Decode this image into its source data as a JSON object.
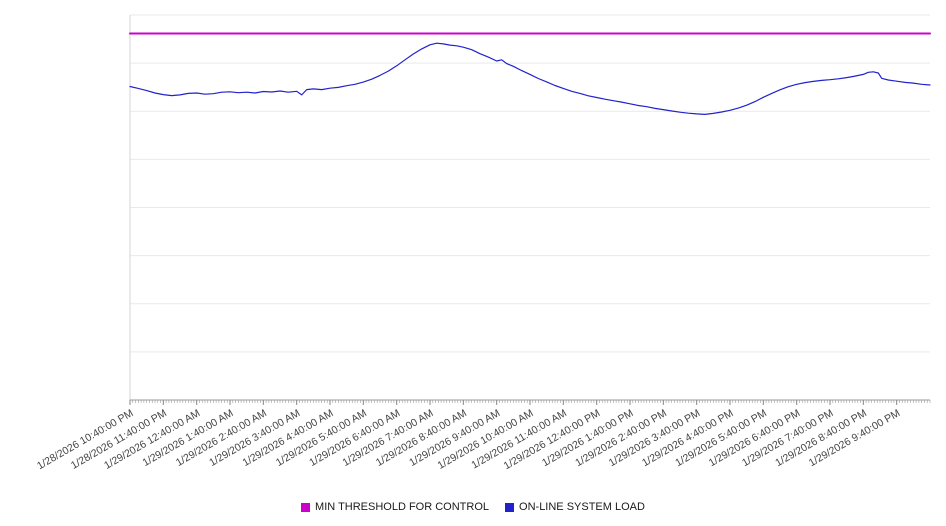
{
  "page": {
    "background": "#ffffff"
  },
  "chart_data": {
    "type": "line",
    "title": "",
    "xlabel": "",
    "ylabel": "",
    "grid": true,
    "legend_position": "bottom",
    "xlim": [
      0,
      24
    ],
    "ylim": [
      0,
      160
    ],
    "y_grid_step": 20,
    "x_tick_interval_hours": 1,
    "x_minor_tick_minutes": 5,
    "categories": [
      "1/28/2026 10:40:00 PM",
      "1/28/2026 11:40:00 PM",
      "1/29/2026 12:40:00 AM",
      "1/29/2026 1:40:00 AM",
      "1/29/2026 2:40:00 AM",
      "1/29/2026 3:40:00 AM",
      "1/29/2026 4:40:00 AM",
      "1/29/2026 5:40:00 AM",
      "1/29/2026 6:40:00 AM",
      "1/29/2026 7:40:00 AM",
      "1/29/2026 8:40:00 AM",
      "1/29/2026 9:40:00 AM",
      "1/29/2026 10:40:00 AM",
      "1/29/2026 11:40:00 AM",
      "1/29/2026 12:40:00 PM",
      "1/29/2026 1:40:00 PM",
      "1/29/2026 2:40:00 PM",
      "1/29/2026 3:40:00 PM",
      "1/29/2026 4:40:00 PM",
      "1/29/2026 5:40:00 PM",
      "1/29/2026 6:40:00 PM",
      "1/29/2026 7:40:00 PM",
      "1/29/2026 8:40:00 PM",
      "1/29/2026 9:40:00 PM"
    ],
    "series": [
      {
        "name": "MIN THRESHOLD FOR CONTROL",
        "color": "#cc00cc",
        "style": "constant",
        "value": 152.3
      },
      {
        "name": "ON-LINE SYSTEM LOAD",
        "color": "#2222cc",
        "style": "line",
        "points": [
          [
            0,
            130.3
          ],
          [
            0.25,
            129.5
          ],
          [
            0.5,
            128.6
          ],
          [
            0.75,
            127.6
          ],
          [
            1,
            126.9
          ],
          [
            1.25,
            126.5
          ],
          [
            1.5,
            126.8
          ],
          [
            1.75,
            127.4
          ],
          [
            2,
            127.6
          ],
          [
            2.25,
            127.1
          ],
          [
            2.5,
            127.3
          ],
          [
            2.75,
            127.9
          ],
          [
            3,
            128.1
          ],
          [
            3.25,
            127.7
          ],
          [
            3.5,
            127.9
          ],
          [
            3.75,
            127.6
          ],
          [
            4,
            128.2
          ],
          [
            4.25,
            128.0
          ],
          [
            4.5,
            128.4
          ],
          [
            4.75,
            127.9
          ],
          [
            5,
            128.3
          ],
          [
            5.15,
            126.8
          ],
          [
            5.3,
            129.0
          ],
          [
            5.5,
            129.3
          ],
          [
            5.75,
            129.0
          ],
          [
            6,
            129.6
          ],
          [
            6.25,
            129.9
          ],
          [
            6.5,
            130.6
          ],
          [
            6.75,
            131.2
          ],
          [
            7,
            132.1
          ],
          [
            7.25,
            133.3
          ],
          [
            7.5,
            134.9
          ],
          [
            7.75,
            136.7
          ],
          [
            8,
            138.9
          ],
          [
            8.25,
            141.4
          ],
          [
            8.5,
            143.8
          ],
          [
            8.75,
            145.9
          ],
          [
            9,
            147.6
          ],
          [
            9.2,
            148.3
          ],
          [
            9.4,
            148.0
          ],
          [
            9.6,
            147.5
          ],
          [
            9.8,
            147.2
          ],
          [
            10,
            146.6
          ],
          [
            10.25,
            145.6
          ],
          [
            10.5,
            143.9
          ],
          [
            10.75,
            142.5
          ],
          [
            11,
            140.9
          ],
          [
            11.15,
            141.4
          ],
          [
            11.3,
            139.8
          ],
          [
            11.5,
            138.7
          ],
          [
            11.75,
            136.9
          ],
          [
            12,
            135.3
          ],
          [
            12.25,
            133.6
          ],
          [
            12.5,
            132.2
          ],
          [
            12.75,
            130.7
          ],
          [
            13,
            129.5
          ],
          [
            13.25,
            128.3
          ],
          [
            13.5,
            127.4
          ],
          [
            13.75,
            126.4
          ],
          [
            14,
            125.7
          ],
          [
            14.25,
            125.0
          ],
          [
            14.5,
            124.4
          ],
          [
            14.75,
            123.8
          ],
          [
            15,
            123.1
          ],
          [
            15.25,
            122.4
          ],
          [
            15.5,
            121.9
          ],
          [
            15.75,
            121.2
          ],
          [
            16,
            120.7
          ],
          [
            16.25,
            120.1
          ],
          [
            16.5,
            119.6
          ],
          [
            16.75,
            119.2
          ],
          [
            17,
            118.9
          ],
          [
            17.25,
            118.7
          ],
          [
            17.5,
            119.1
          ],
          [
            17.75,
            119.7
          ],
          [
            18,
            120.4
          ],
          [
            18.25,
            121.3
          ],
          [
            18.5,
            122.5
          ],
          [
            18.75,
            124.0
          ],
          [
            19,
            125.8
          ],
          [
            19.25,
            127.4
          ],
          [
            19.5,
            128.9
          ],
          [
            19.75,
            130.2
          ],
          [
            20,
            131.2
          ],
          [
            20.25,
            131.9
          ],
          [
            20.5,
            132.4
          ],
          [
            20.75,
            132.8
          ],
          [
            21,
            133.1
          ],
          [
            21.25,
            133.5
          ],
          [
            21.5,
            134.0
          ],
          [
            21.75,
            134.6
          ],
          [
            22,
            135.3
          ],
          [
            22.15,
            136.2
          ],
          [
            22.3,
            136.4
          ],
          [
            22.45,
            135.9
          ],
          [
            22.55,
            133.7
          ],
          [
            22.75,
            133.0
          ],
          [
            23,
            132.5
          ],
          [
            23.25,
            132.0
          ],
          [
            23.5,
            131.7
          ],
          [
            23.75,
            131.2
          ],
          [
            24,
            130.9
          ]
        ]
      }
    ]
  }
}
